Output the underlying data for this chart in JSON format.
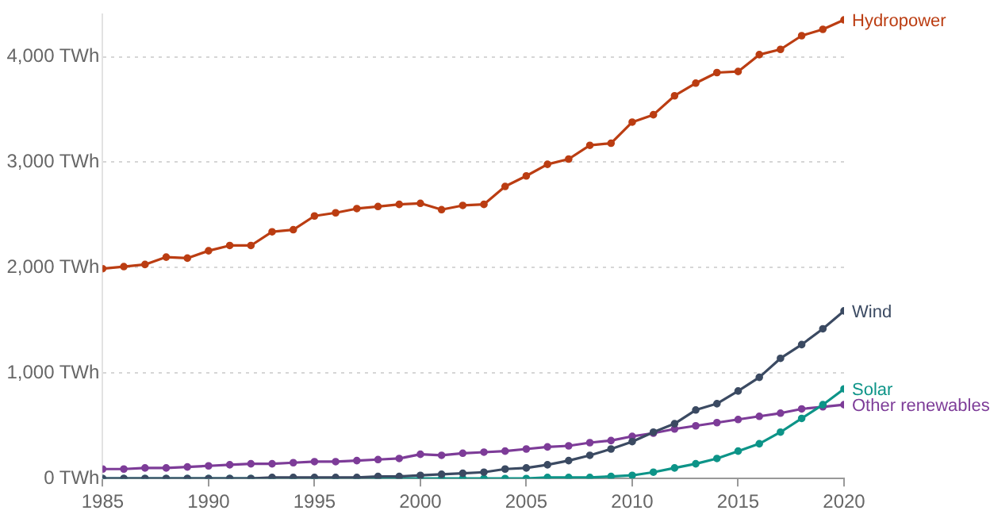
{
  "chart_data": {
    "type": "line",
    "x": [
      1985,
      1986,
      1987,
      1988,
      1989,
      1990,
      1991,
      1992,
      1993,
      1994,
      1995,
      1996,
      1997,
      1998,
      1999,
      2000,
      2001,
      2002,
      2003,
      2004,
      2005,
      2006,
      2007,
      2008,
      2009,
      2010,
      2011,
      2012,
      2013,
      2014,
      2015,
      2016,
      2017,
      2018,
      2019,
      2020
    ],
    "series": [
      {
        "name": "Hydropower",
        "color": "#bb3d12",
        "values": [
          1990,
          2010,
          2030,
          2100,
          2090,
          2160,
          2210,
          2210,
          2340,
          2360,
          2490,
          2520,
          2560,
          2580,
          2600,
          2610,
          2550,
          2590,
          2600,
          2770,
          2870,
          2980,
          3030,
          3160,
          3180,
          3380,
          3450,
          3630,
          3750,
          3850,
          3860,
          4020,
          4070,
          4200,
          4260,
          4350
        ]
      },
      {
        "name": "Wind",
        "color": "#3b4a62",
        "values": [
          0,
          0,
          0,
          0,
          0,
          0,
          0,
          0,
          10,
          10,
          10,
          10,
          10,
          20,
          20,
          30,
          40,
          50,
          60,
          90,
          100,
          130,
          170,
          220,
          280,
          350,
          440,
          520,
          650,
          710,
          830,
          960,
          1140,
          1270,
          1420,
          1590
        ]
      },
      {
        "name": "Solar",
        "color": "#0d9488",
        "values": [
          0,
          0,
          0,
          0,
          0,
          0,
          0,
          0,
          0,
          0,
          0,
          0,
          0,
          0,
          0,
          0,
          0,
          0,
          0,
          0,
          0,
          10,
          10,
          10,
          20,
          30,
          60,
          100,
          140,
          190,
          260,
          330,
          440,
          570,
          700,
          850
        ]
      },
      {
        "name": "Other renewables",
        "color": "#7d3c98",
        "values": [
          90,
          90,
          100,
          100,
          110,
          120,
          130,
          140,
          140,
          150,
          160,
          160,
          170,
          180,
          190,
          230,
          220,
          240,
          250,
          260,
          280,
          300,
          310,
          340,
          360,
          400,
          430,
          470,
          500,
          530,
          560,
          590,
          620,
          660,
          680,
          700
        ]
      }
    ],
    "xlim": [
      1985,
      2020
    ],
    "xticks": [
      1985,
      1990,
      1995,
      2000,
      2005,
      2010,
      2015,
      2020
    ],
    "ylim": [
      0,
      4400
    ],
    "yticks": [
      {
        "value": 0,
        "label": "0 TWh"
      },
      {
        "value": 1000,
        "label": "1,000 TWh"
      },
      {
        "value": 2000,
        "label": "2,000 TWh"
      },
      {
        "value": 3000,
        "label": "3,000 TWh"
      },
      {
        "value": 4000,
        "label": "4,000 TWh"
      }
    ],
    "grid": "y",
    "marker": "circle",
    "line_style": "solid"
  }
}
